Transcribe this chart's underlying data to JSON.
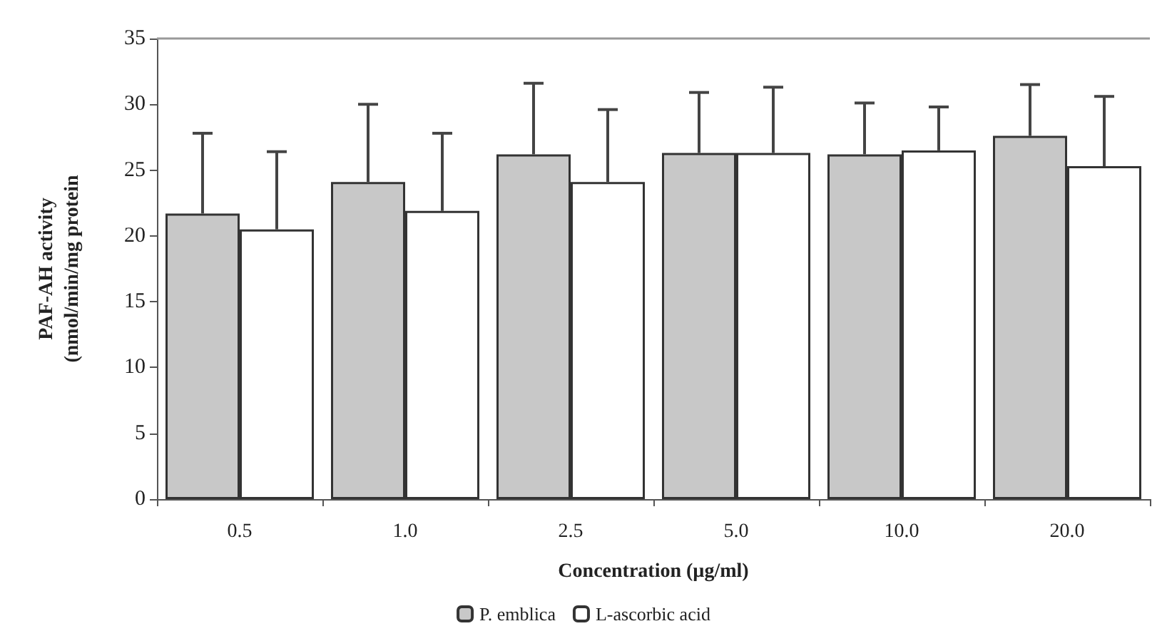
{
  "chart_data": {
    "type": "bar",
    "xlabel": "Concentration (µg/ml)",
    "ylabel": "PAF-AH activity\n(nmol/min/mg protein",
    "categories": [
      "0.5",
      "1.0",
      "2.5",
      "5.0",
      "10.0",
      "20.0"
    ],
    "series": [
      {
        "name": "P. emblica",
        "color": "#c8c8c8",
        "values": [
          21.7,
          24.1,
          26.2,
          26.3,
          26.2,
          27.6
        ],
        "errors": [
          [
            21.7,
            27.8
          ],
          [
            24.1,
            30.0
          ],
          [
            26.2,
            31.6
          ],
          [
            26.3,
            30.9
          ],
          [
            26.2,
            30.1
          ],
          [
            27.6,
            31.5
          ]
        ]
      },
      {
        "name": "L-ascorbic acid",
        "color": "#ffffff",
        "values": [
          20.5,
          21.9,
          24.1,
          26.3,
          26.5,
          25.3
        ],
        "errors": [
          [
            20.5,
            26.4
          ],
          [
            21.9,
            27.8
          ],
          [
            24.1,
            29.6
          ],
          [
            26.3,
            31.3
          ],
          [
            26.5,
            29.8
          ],
          [
            25.3,
            30.6
          ]
        ]
      }
    ],
    "ylim": [
      0,
      35
    ],
    "yticks": [
      0,
      5,
      10,
      15,
      20,
      25,
      30,
      35
    ],
    "grid": false,
    "legend": "bottom"
  }
}
